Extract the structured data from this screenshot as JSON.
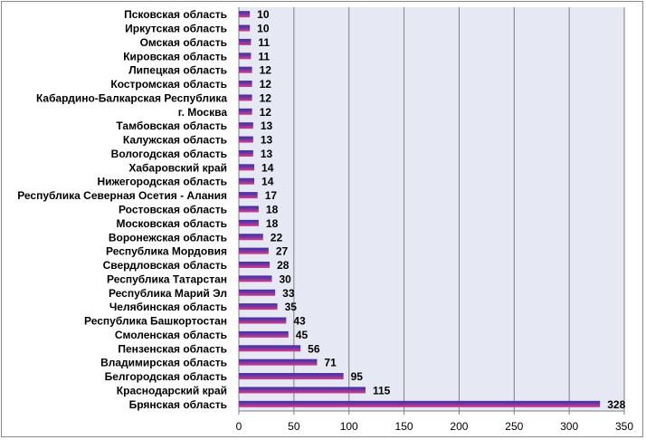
{
  "chart_data": {
    "type": "bar",
    "orientation": "horizontal",
    "title": "",
    "xlabel": "",
    "ylabel": "",
    "xlim": [
      0,
      350
    ],
    "xticks": [
      0,
      50,
      100,
      150,
      200,
      250,
      300,
      350
    ],
    "grid": true,
    "legend": "none",
    "colors": {
      "bar_top": "#3a2fa8",
      "bar_bottom": "#d83d8a",
      "plot_bg": "#e6e9f3",
      "grid": "#7f7f7f"
    },
    "categories": [
      "Псковская область",
      "Иркутская область",
      "Омская область",
      "Кировская область",
      "Липецкая область",
      "Костромская область",
      "Кабардино-Балкарская Республика",
      "г. Москва",
      "Тамбовская область",
      "Калужская область",
      "Вологодская область",
      "Хабаровский край",
      "Нижегородская область",
      "Республика Северная Осетия - Алания",
      "Ростовская область",
      "Московская область",
      "Воронежская область",
      "Республика Мордовия",
      "Свердловская область",
      "Республика Татарстан",
      "Республика Марий Эл",
      "Челябинская область",
      "Республика Башкортостан",
      "Смоленская область",
      "Пензенская область",
      "Владимирская область",
      "Белгородская область",
      "Краснодарский край",
      "Брянская область"
    ],
    "values": [
      10,
      10,
      11,
      11,
      12,
      12,
      12,
      12,
      13,
      13,
      13,
      14,
      14,
      17,
      18,
      18,
      22,
      27,
      28,
      30,
      33,
      35,
      43,
      45,
      56,
      71,
      95,
      115,
      328
    ]
  }
}
